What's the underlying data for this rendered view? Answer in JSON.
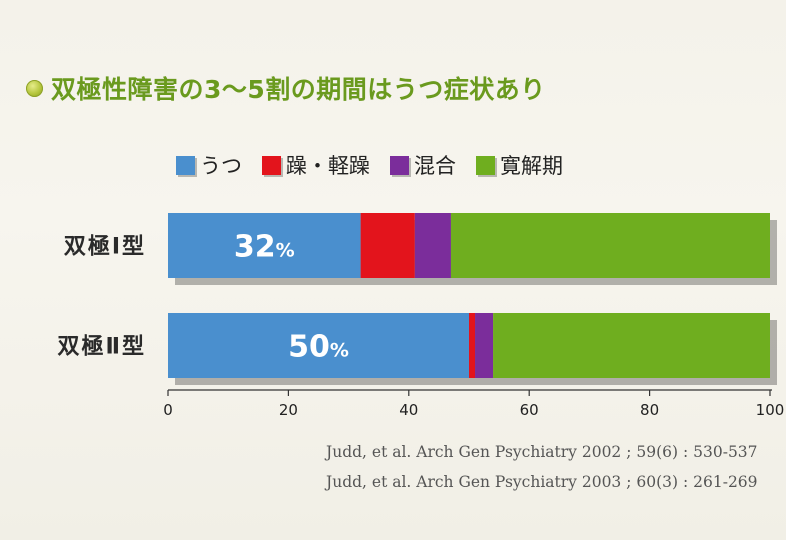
{
  "title": "双極性障害の3～5割の期間はうつ症状あり",
  "colors": {
    "title": "#6a9a1e",
    "depression": "#4a8fce",
    "mania": "#e3141c",
    "mixed": "#7b2d9b",
    "remission": "#6fae1f"
  },
  "legend": [
    {
      "label": "うつ",
      "color": "#4a8fce"
    },
    {
      "label": "躁・軽躁",
      "color": "#e3141c"
    },
    {
      "label": "混合",
      "color": "#7b2d9b"
    },
    {
      "label": "寛解期",
      "color": "#6fae1f"
    }
  ],
  "chart_data": {
    "type": "bar",
    "orientation": "horizontal",
    "stacked": true,
    "categories": [
      "双極Ⅰ型",
      "双極Ⅱ型"
    ],
    "series": [
      {
        "name": "うつ",
        "values": [
          32,
          50
        ]
      },
      {
        "name": "躁・軽躁",
        "values": [
          9,
          1
        ]
      },
      {
        "name": "混合",
        "values": [
          6,
          3
        ]
      },
      {
        "name": "寛解期",
        "values": [
          53,
          46
        ]
      }
    ],
    "data_labels": [
      {
        "number": "32",
        "unit": "%"
      },
      {
        "number": "50",
        "unit": "%"
      }
    ],
    "xlim": [
      0,
      100
    ],
    "xticks": [
      "0",
      "20",
      "40",
      "60",
      "80",
      "100"
    ],
    "grid": false,
    "legend_position": "top"
  },
  "citations": [
    "Judd, et al. Arch Gen Psychiatry 2002 ; 59(6) : 530-537",
    "Judd, et al. Arch Gen Psychiatry 2003 ; 60(3) : 261-269"
  ]
}
